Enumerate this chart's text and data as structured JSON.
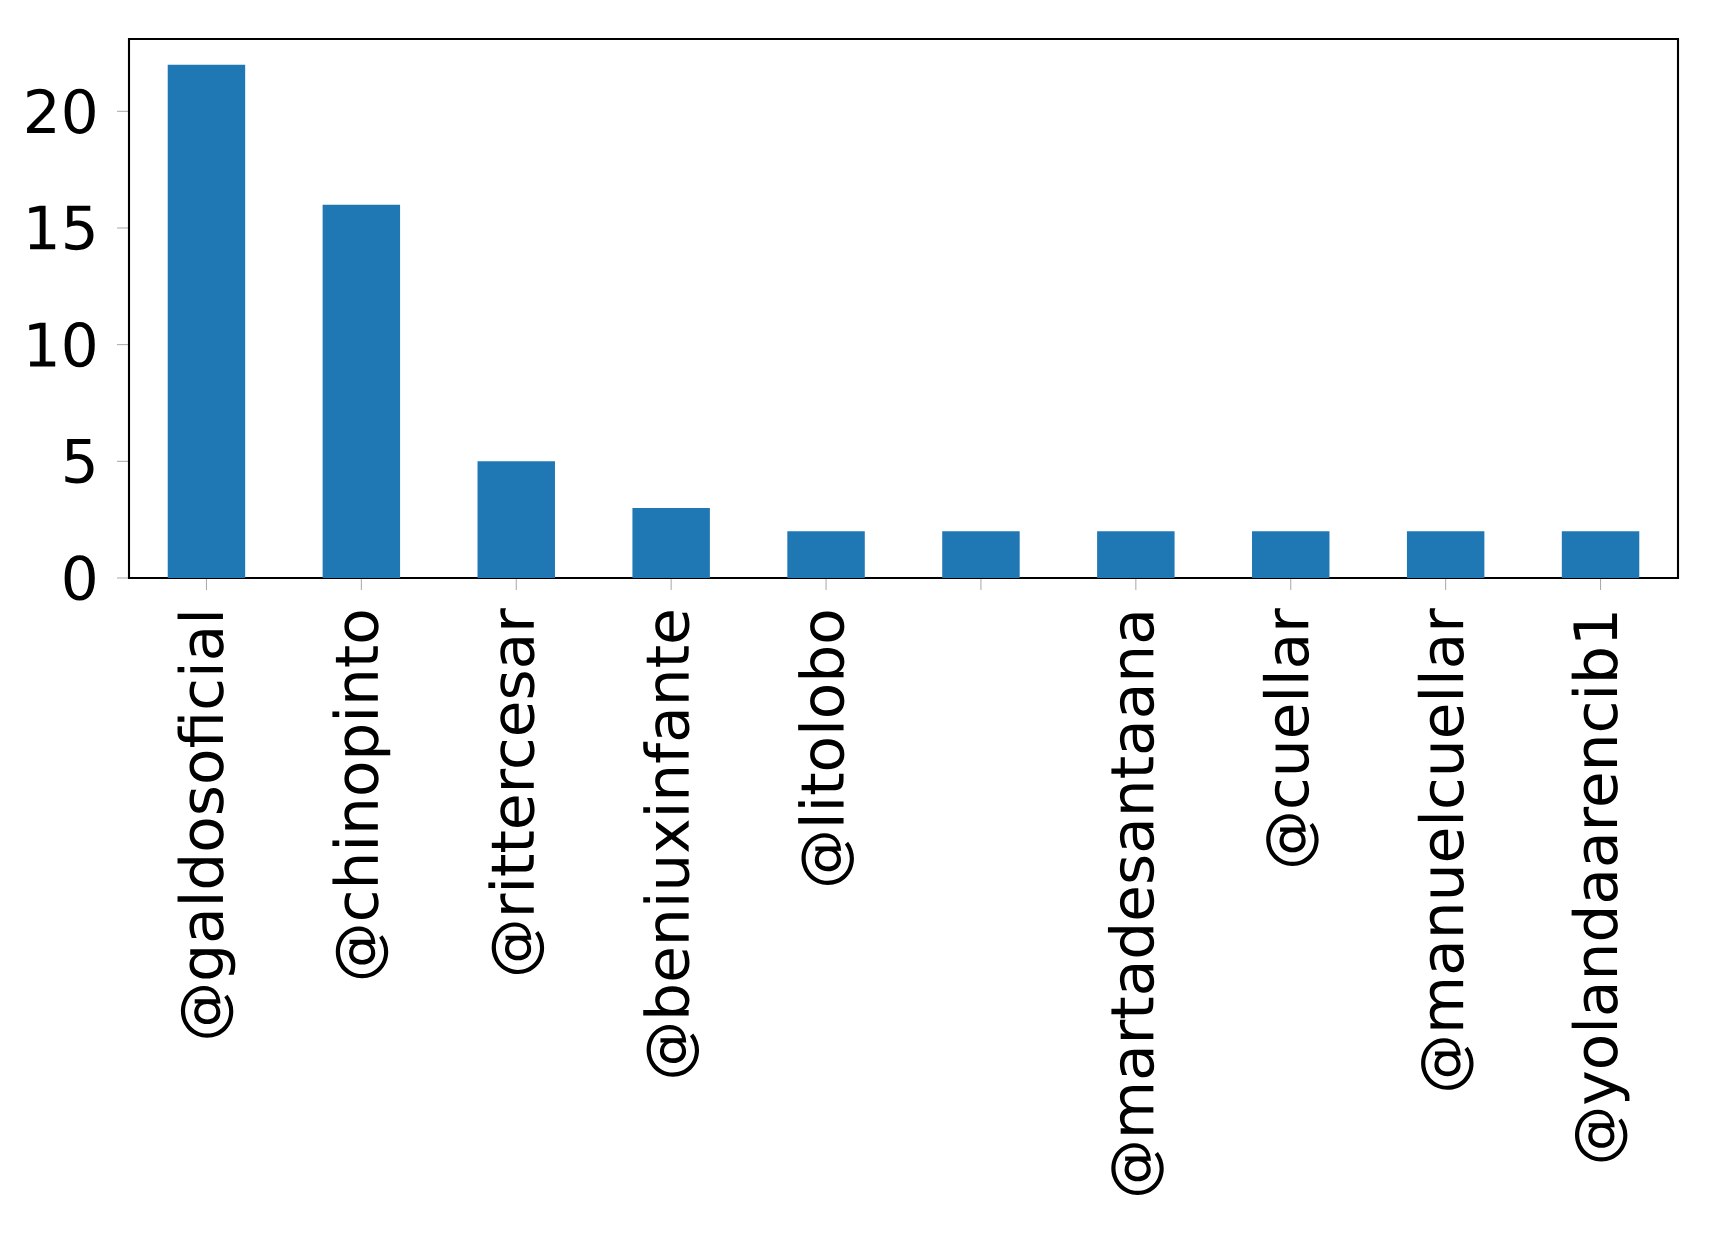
{
  "chart_data": {
    "type": "bar",
    "categories": [
      "@galdosoficial",
      "@chinopinto",
      "@rittercesar",
      "@beniuxinfante",
      "@litolobo",
      null,
      "@martadesantaana",
      "@cuellar",
      "@manuelcuellar",
      "@yolandaarencib1"
    ],
    "values": [
      22,
      16,
      5,
      3,
      2,
      2,
      2,
      2,
      2,
      2
    ],
    "color": "#1f77b4",
    "ylim": [
      0,
      23.1
    ],
    "yticks": [
      0,
      5,
      10,
      15,
      20
    ]
  }
}
